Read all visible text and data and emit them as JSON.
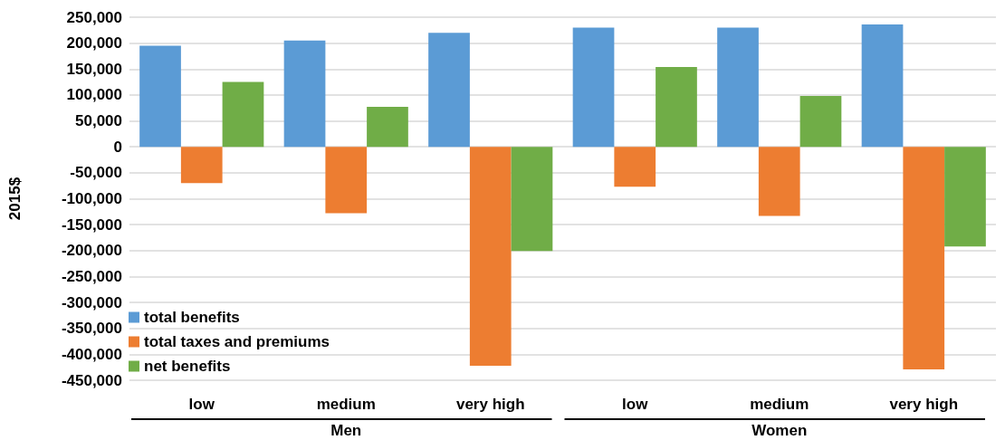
{
  "chart_data": {
    "type": "bar",
    "ylabel": "2015$",
    "categories": [
      "low",
      "medium",
      "very high",
      "low",
      "medium",
      "very high"
    ],
    "series": [
      {
        "name": "total benefits",
        "color": "#5b9bd5",
        "values": [
          195000,
          205000,
          220000,
          230000,
          230000,
          236000
        ]
      },
      {
        "name": "total taxes and premiums",
        "color": "#ed7d31",
        "values": [
          -70000,
          -128000,
          -422000,
          -77000,
          -133000,
          -429000
        ]
      },
      {
        "name": "net benefits",
        "color": "#70ad47",
        "values": [
          125000,
          77000,
          -201000,
          154000,
          98000,
          -192000
        ]
      }
    ],
    "annotations": [
      "Men",
      "Women"
    ],
    "ylim": [
      -450000,
      250000
    ],
    "yticks": [
      {
        "value": -450000,
        "label": "-450,000"
      },
      {
        "value": -400000,
        "label": "-400,000"
      },
      {
        "value": -350000,
        "label": "-350,000"
      },
      {
        "value": -300000,
        "label": "-300,000"
      },
      {
        "value": -250000,
        "label": "-250,000"
      },
      {
        "value": -200000,
        "label": "-200,000"
      },
      {
        "value": -150000,
        "label": "-150,000"
      },
      {
        "value": -100000,
        "label": "-100,000"
      },
      {
        "value": -50000,
        "label": "-50,000"
      },
      0,
      {
        "value": 50000,
        "label": "50,000"
      },
      {
        "value": 100000,
        "label": "100,000"
      },
      {
        "value": 150000,
        "label": "150,000"
      },
      {
        "value": 200000,
        "label": "200,000"
      },
      {
        "value": 250000,
        "label": "250,000"
      }
    ],
    "grid": "y",
    "legend": "bottom left"
  }
}
